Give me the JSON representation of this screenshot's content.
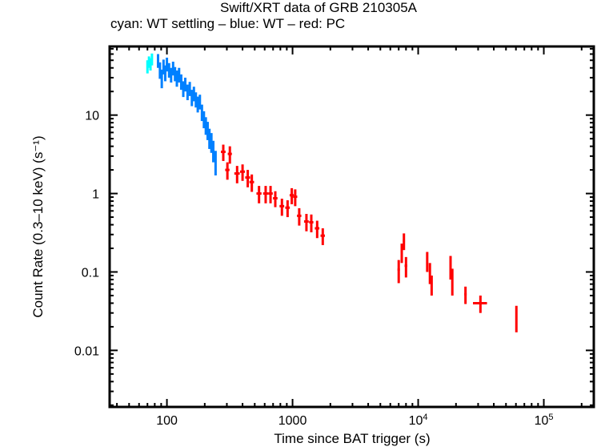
{
  "chart_data": {
    "type": "scatter",
    "title": "Swift/XRT data of GRB 210305A",
    "subtitle": "cyan: WT settling – blue: WT – red: PC",
    "xlabel": "Time since BAT trigger (s)",
    "ylabel": "Count Rate (0.3–10 keV) (s⁻¹)",
    "xscale": "log",
    "yscale": "log",
    "xlim": [
      35,
      250000
    ],
    "ylim": [
      0.0019,
      75
    ],
    "x_ticks": [
      {
        "value": 100,
        "label": "100"
      },
      {
        "value": 1000,
        "label": "1000"
      },
      {
        "value": 10000,
        "label": "10",
        "sup": "4"
      },
      {
        "value": 100000,
        "label": "10",
        "sup": "5"
      }
    ],
    "y_ticks": [
      {
        "value": 10,
        "label": "10"
      },
      {
        "value": 1,
        "label": "1"
      },
      {
        "value": 0.1,
        "label": "0.1"
      },
      {
        "value": 0.01,
        "label": "0.01"
      }
    ],
    "grid": false,
    "series": [
      {
        "name": "WT settling",
        "color": "#00ffff",
        "points": [
          {
            "x": 70,
            "y": 42,
            "xerr": 1,
            "yerr": 8
          },
          {
            "x": 72,
            "y": 48,
            "xerr": 1,
            "yerr": 8
          },
          {
            "x": 74,
            "y": 45,
            "xerr": 1,
            "yerr": 8
          },
          {
            "x": 76,
            "y": 52,
            "xerr": 1,
            "yerr": 9
          }
        ]
      },
      {
        "name": "WT",
        "color": "#0080ff",
        "points": [
          {
            "x": 85,
            "y": 50,
            "xerr": 1.5,
            "yerr": 10
          },
          {
            "x": 88,
            "y": 38,
            "xerr": 1.5,
            "yerr": 9
          },
          {
            "x": 91,
            "y": 30,
            "xerr": 1.5,
            "yerr": 8
          },
          {
            "x": 94,
            "y": 42,
            "xerr": 1.5,
            "yerr": 9
          },
          {
            "x": 97,
            "y": 35,
            "xerr": 1.5,
            "yerr": 8
          },
          {
            "x": 100,
            "y": 45,
            "xerr": 1.5,
            "yerr": 9
          },
          {
            "x": 104,
            "y": 38,
            "xerr": 1.5,
            "yerr": 8
          },
          {
            "x": 108,
            "y": 33,
            "xerr": 1.5,
            "yerr": 7
          },
          {
            "x": 112,
            "y": 40,
            "xerr": 2,
            "yerr": 8
          },
          {
            "x": 116,
            "y": 34,
            "xerr": 2,
            "yerr": 7
          },
          {
            "x": 120,
            "y": 30,
            "xerr": 2,
            "yerr": 7
          },
          {
            "x": 125,
            "y": 33,
            "xerr": 2,
            "yerr": 7
          },
          {
            "x": 130,
            "y": 27,
            "xerr": 2,
            "yerr": 6
          },
          {
            "x": 135,
            "y": 22,
            "xerr": 2,
            "yerr": 5
          },
          {
            "x": 140,
            "y": 25,
            "xerr": 2,
            "yerr": 5
          },
          {
            "x": 146,
            "y": 20,
            "xerr": 2,
            "yerr": 4.5
          },
          {
            "x": 152,
            "y": 22,
            "xerr": 2,
            "yerr": 4.5
          },
          {
            "x": 158,
            "y": 17,
            "xerr": 2.5,
            "yerr": 4
          },
          {
            "x": 164,
            "y": 19,
            "xerr": 2.5,
            "yerr": 4
          },
          {
            "x": 170,
            "y": 16,
            "xerr": 2.5,
            "yerr": 3.5
          },
          {
            "x": 176,
            "y": 14,
            "xerr": 2.5,
            "yerr": 3.2
          },
          {
            "x": 183,
            "y": 15,
            "xerr": 2.5,
            "yerr": 3.2
          },
          {
            "x": 190,
            "y": 11,
            "xerr": 3,
            "yerr": 2.6
          },
          {
            "x": 197,
            "y": 9,
            "xerr": 3,
            "yerr": 2.2
          },
          {
            "x": 204,
            "y": 7.5,
            "xerr": 3,
            "yerr": 1.9
          },
          {
            "x": 211,
            "y": 6.5,
            "xerr": 3,
            "yerr": 1.7
          },
          {
            "x": 218,
            "y": 5.2,
            "xerr": 3,
            "yerr": 1.5
          },
          {
            "x": 226,
            "y": 4.6,
            "xerr": 3,
            "yerr": 1.3
          },
          {
            "x": 234,
            "y": 3.6,
            "xerr": 3,
            "yerr": 1.1
          },
          {
            "x": 244,
            "y": 2.6,
            "xerr": 3,
            "yerr": 0.9
          }
        ]
      },
      {
        "name": "PC",
        "color": "#ff0000",
        "points": [
          {
            "x": 281,
            "y": 3.4,
            "xerr": 12,
            "yerr": 0.8
          },
          {
            "x": 303,
            "y": 2.0,
            "xerr": 12,
            "yerr": 0.5
          },
          {
            "x": 317,
            "y": 3.2,
            "xerr": 12,
            "yerr": 0.8
          },
          {
            "x": 362,
            "y": 1.8,
            "xerr": 18,
            "yerr": 0.45
          },
          {
            "x": 400,
            "y": 1.9,
            "xerr": 18,
            "yerr": 0.45
          },
          {
            "x": 440,
            "y": 1.6,
            "xerr": 20,
            "yerr": 0.4
          },
          {
            "x": 474,
            "y": 1.4,
            "xerr": 20,
            "yerr": 0.35
          },
          {
            "x": 541,
            "y": 1.0,
            "xerr": 25,
            "yerr": 0.25
          },
          {
            "x": 611,
            "y": 1.0,
            "xerr": 28,
            "yerr": 0.25
          },
          {
            "x": 668,
            "y": 1.0,
            "xerr": 28,
            "yerr": 0.25
          },
          {
            "x": 729,
            "y": 0.87,
            "xerr": 30,
            "yerr": 0.2
          },
          {
            "x": 823,
            "y": 0.69,
            "xerr": 35,
            "yerr": 0.17
          },
          {
            "x": 913,
            "y": 0.66,
            "xerr": 38,
            "yerr": 0.16
          },
          {
            "x": 986,
            "y": 0.95,
            "xerr": 38,
            "yerr": 0.22
          },
          {
            "x": 1050,
            "y": 0.91,
            "xerr": 40,
            "yerr": 0.22
          },
          {
            "x": 1130,
            "y": 0.52,
            "xerr": 45,
            "yerr": 0.13
          },
          {
            "x": 1290,
            "y": 0.44,
            "xerr": 55,
            "yerr": 0.11
          },
          {
            "x": 1410,
            "y": 0.43,
            "xerr": 55,
            "yerr": 0.11
          },
          {
            "x": 1570,
            "y": 0.36,
            "xerr": 65,
            "yerr": 0.09
          },
          {
            "x": 1740,
            "y": 0.29,
            "xerr": 70,
            "yerr": 0.07
          },
          {
            "x": 7000,
            "y": 0.107,
            "xerr": 150,
            "yerr": 0.035
          },
          {
            "x": 7400,
            "y": 0.18,
            "xerr": 150,
            "yerr": 0.05
          },
          {
            "x": 7700,
            "y": 0.25,
            "xerr": 150,
            "yerr": 0.06
          },
          {
            "x": 8000,
            "y": 0.12,
            "xerr": 200,
            "yerr": 0.035
          },
          {
            "x": 11800,
            "y": 0.14,
            "xerr": 200,
            "yerr": 0.04
          },
          {
            "x": 12400,
            "y": 0.1,
            "xerr": 200,
            "yerr": 0.03
          },
          {
            "x": 12800,
            "y": 0.07,
            "xerr": 200,
            "yerr": 0.02
          },
          {
            "x": 18100,
            "y": 0.12,
            "xerr": 300,
            "yerr": 0.04
          },
          {
            "x": 18700,
            "y": 0.08,
            "xerr": 300,
            "yerr": 0.03
          },
          {
            "x": 23800,
            "y": 0.052,
            "xerr": 500,
            "yerr": 0.013
          },
          {
            "x": 31300,
            "y": 0.04,
            "xerr": 4000,
            "yerr": 0.01
          },
          {
            "x": 60500,
            "y": 0.027,
            "xerr": 800,
            "yerr": 0.01
          }
        ]
      }
    ]
  }
}
